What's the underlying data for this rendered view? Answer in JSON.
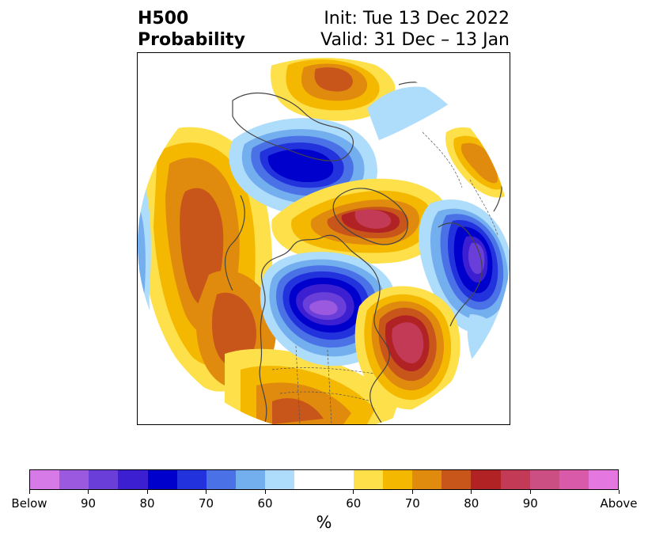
{
  "title": {
    "left_line1": "H500",
    "left_line2": "Probability",
    "right_line1": "Init: Tue 13 Dec 2022",
    "right_line2": "Valid: 31 Dec – 13 Jan"
  },
  "map": {
    "projection": "polar stereographic (Northern Hemisphere, North America centered)",
    "anomalies": [
      {
        "sign": "below",
        "region": "Central Canada / Hudson Bay",
        "peak": "90"
      },
      {
        "sign": "below",
        "region": "Northern Canada / Arctic",
        "peak": "85"
      },
      {
        "sign": "below",
        "region": "Eastern Europe / Western Russia",
        "peak": "90"
      },
      {
        "sign": "above",
        "region": "Greenland / Iceland",
        "peak": "85"
      },
      {
        "sign": "above",
        "region": "Western North Atlantic",
        "peak": "85"
      },
      {
        "sign": "above",
        "region": "Eastern Siberia / Bering Sea",
        "peak": "75"
      },
      {
        "sign": "above",
        "region": "Gulf of Alaska / NE Pacific",
        "peak": "75"
      },
      {
        "sign": "above",
        "region": "Southern United States",
        "peak": "70"
      }
    ]
  },
  "colorbar": {
    "colors": [
      "#d67ae8",
      "#9b59e0",
      "#6a3fd9",
      "#3b1fd1",
      "#0000cd",
      "#2233dd",
      "#4a72e6",
      "#73aeef",
      "#aedcfb",
      "#ffffff",
      "#ffffff",
      "#fde04a",
      "#f5b800",
      "#e08a0e",
      "#c8561a",
      "#b02224",
      "#c23a55",
      "#cc4f84",
      "#d95aa8",
      "#e478e0"
    ],
    "labels": [
      "Below",
      "90",
      "80",
      "70",
      "60",
      "60",
      "70",
      "80",
      "90",
      "Above"
    ],
    "unit": "%"
  }
}
